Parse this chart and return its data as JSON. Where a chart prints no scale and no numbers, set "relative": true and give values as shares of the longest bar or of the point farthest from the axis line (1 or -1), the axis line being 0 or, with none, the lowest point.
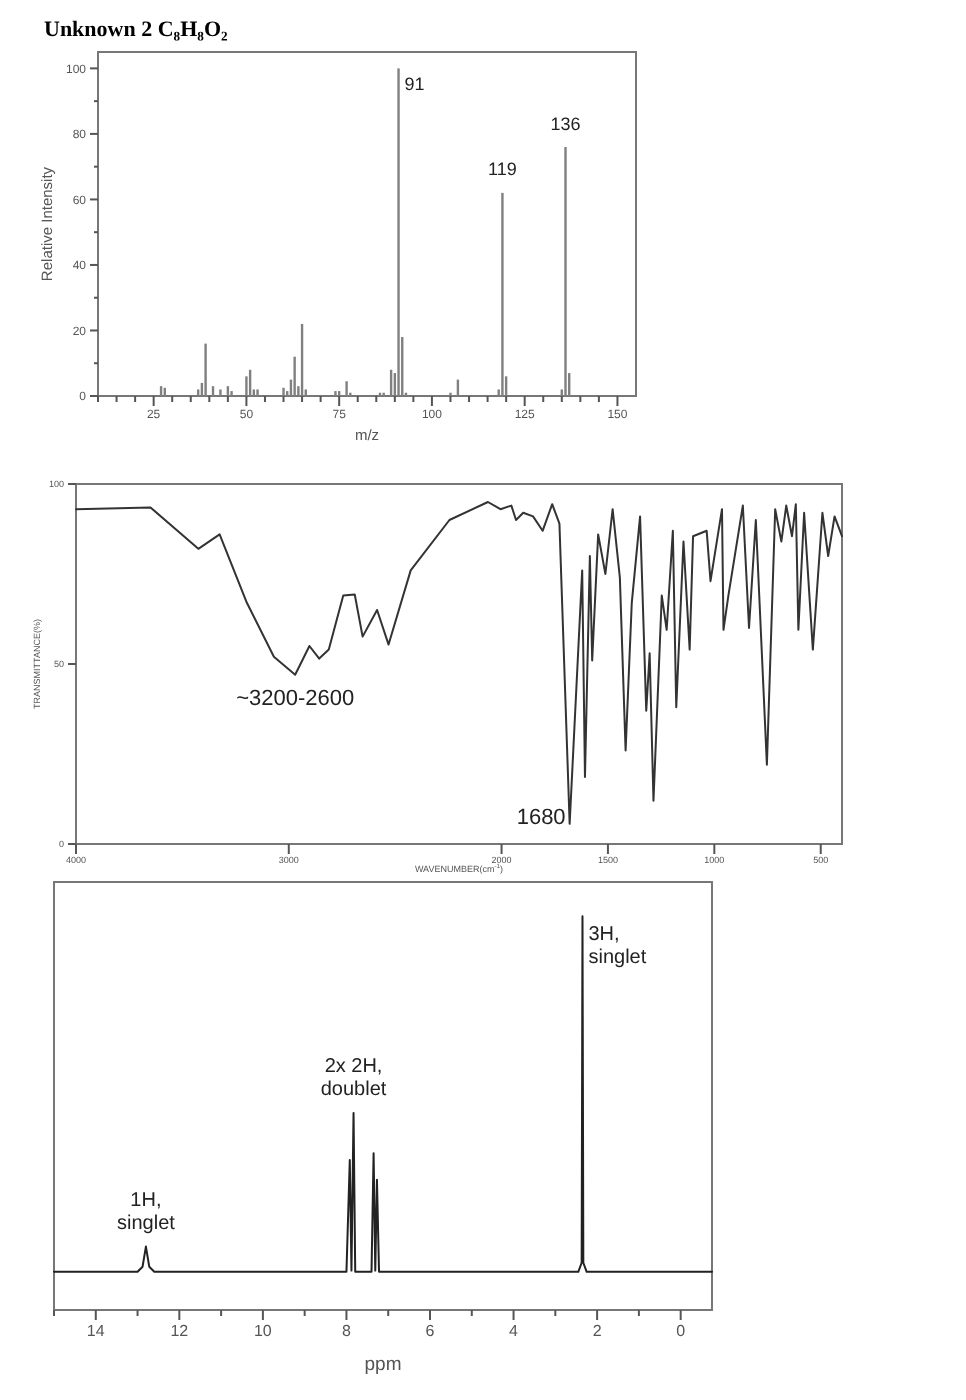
{
  "chart_data": [
    {
      "type": "bar",
      "title": "Unknown 2 C₈H₈O₂",
      "xlabel": "m/z",
      "ylabel": "Relative Intensity",
      "color": "#808080",
      "x": [
        27,
        28,
        37,
        38,
        39,
        41,
        43,
        45,
        46,
        50,
        51,
        52,
        53,
        60,
        61,
        62,
        63,
        64,
        65,
        66,
        74,
        75,
        77,
        78,
        86,
        87,
        89,
        90,
        91,
        92,
        93,
        105,
        107,
        118,
        119,
        120,
        135,
        136,
        137
      ],
      "values": [
        3,
        2.5,
        2,
        4,
        16,
        3,
        2,
        3,
        1.5,
        6,
        8,
        2,
        2,
        2.5,
        1.5,
        5,
        12,
        3,
        22,
        2,
        1.5,
        1.5,
        4.5,
        1,
        1,
        1,
        8,
        7,
        100,
        18,
        1,
        1,
        5,
        2,
        62,
        6,
        2,
        76,
        7
      ],
      "xlim": [
        10,
        155
      ],
      "ylim": [
        0,
        105
      ],
      "xticks": [
        {
          "value": 10,
          "label": null
        },
        {
          "value": 15,
          "label": null
        },
        {
          "value": 20,
          "label": null
        },
        25,
        {
          "value": 30,
          "label": null
        },
        {
          "value": 35,
          "label": null
        },
        {
          "value": 40,
          "label": null
        },
        {
          "value": 45,
          "label": null
        },
        50,
        {
          "value": 55,
          "label": null
        },
        {
          "value": 60,
          "label": null
        },
        {
          "value": 65,
          "label": null
        },
        {
          "value": 70,
          "label": null
        },
        75,
        {
          "value": 80,
          "label": null
        },
        {
          "value": 85,
          "label": null
        },
        {
          "value": 90,
          "label": null
        },
        {
          "value": 95,
          "label": null
        },
        100,
        {
          "value": 105,
          "label": null
        },
        {
          "value": 110,
          "label": null
        },
        {
          "value": 115,
          "label": null
        },
        {
          "value": 120,
          "label": null
        },
        125,
        {
          "value": 130,
          "label": null
        },
        {
          "value": 135,
          "label": null
        },
        {
          "value": 140,
          "label": null
        },
        {
          "value": 145,
          "label": null
        },
        150
      ],
      "yticks": [
        0,
        {
          "value": 10,
          "label": null
        },
        20,
        {
          "value": 30,
          "label": null
        },
        40,
        {
          "value": 50,
          "label": null
        },
        60,
        {
          "value": 70,
          "label": null
        },
        80,
        {
          "value": 90,
          "label": null
        },
        100
      ],
      "annotations": [
        {
          "text": "91",
          "x": 91,
          "y": 100
        },
        {
          "text": "119",
          "x": 119,
          "y": 62
        },
        {
          "text": "136",
          "x": 136,
          "y": 76
        }
      ]
    },
    {
      "type": "line",
      "xlabel": "WAVENUMBER(cm$^{-1}$)",
      "ylabel": "TRANSMITTANCE(%)",
      "color": "#333333",
      "x": [
        4000,
        3650,
        3425,
        3325,
        3197,
        3070,
        2970,
        2903,
        2857,
        2812,
        2744,
        2690,
        2653,
        2585,
        2531,
        2427,
        2245,
        2064,
        2005,
        1954,
        1932,
        1898,
        1852,
        1807,
        1762,
        1728,
        1680,
        1621,
        1608,
        1585,
        1574,
        1546,
        1512,
        1478,
        1444,
        1417,
        1388,
        1349,
        1320,
        1304,
        1286,
        1247,
        1224,
        1195,
        1179,
        1145,
        1116,
        1100,
        1036,
        1018,
        964,
        957,
        934,
        866,
        837,
        805,
        753,
        714,
        685,
        662,
        635,
        617,
        605,
        578,
        537,
        492,
        465,
        435,
        400
      ],
      "values": [
        93,
        93.5,
        82,
        86,
        67,
        52,
        47,
        55,
        51.5,
        54,
        69,
        69.3,
        57.6,
        65,
        55.4,
        76,
        90,
        95,
        93,
        94,
        90,
        92,
        91,
        87,
        94.4,
        89,
        5.6,
        76,
        18.6,
        80,
        51,
        86,
        75,
        93,
        74,
        26,
        67,
        91,
        37,
        53,
        12,
        69,
        59.5,
        87,
        38,
        84,
        54,
        85.5,
        87,
        73,
        93,
        59.5,
        69,
        94,
        60,
        90,
        22,
        93,
        84,
        94,
        85.5,
        94.4,
        59.5,
        92,
        54,
        92,
        80,
        91,
        85.5
      ],
      "xlim": [
        4000,
        400
      ],
      "ylim": [
        0,
        100
      ],
      "xticks": [
        4000,
        3000,
        2000,
        1500,
        1000,
        500
      ],
      "yticks": [
        0,
        50,
        100
      ],
      "annotations": [
        {
          "text": "~3200-2600",
          "x": 2970,
          "y": 47
        },
        {
          "text": "1680",
          "x": 1680,
          "y": 5.6
        }
      ]
    },
    {
      "type": "line",
      "xlabel": "ppm",
      "relative": true,
      "color": "#222222",
      "x": [
        15,
        13.0,
        12.88,
        12.8,
        12.72,
        12.6,
        8.0,
        7.92,
        7.88,
        7.83,
        7.79,
        7.4,
        7.35,
        7.31,
        7.27,
        7.22,
        2.45,
        2.37,
        2.35,
        2.33,
        2.25,
        -0.75
      ],
      "values": [
        0.097,
        0.097,
        0.11,
        0.161,
        0.11,
        0.097,
        0.097,
        0.381,
        0.1,
        0.5,
        0.097,
        0.097,
        0.398,
        0.1,
        0.331,
        0.097,
        0.097,
        0.12,
        1,
        0.12,
        0.097,
        0.097
      ],
      "xlim": [
        15,
        -0.75
      ],
      "xticks": [
        {
          "value": 15,
          "label": null
        },
        14,
        {
          "value": 13,
          "label": null
        },
        12,
        {
          "value": 11,
          "label": null
        },
        10,
        {
          "value": 9,
          "label": null
        },
        8,
        {
          "value": 7,
          "label": null
        },
        6,
        {
          "value": 5,
          "label": null
        },
        4,
        {
          "value": 3,
          "label": null
        },
        2,
        {
          "value": 1,
          "label": null
        },
        0
      ],
      "annotations": [
        {
          "text": "1H,\nsinglet",
          "x": 12.8,
          "y": 0.161
        },
        {
          "text": "2x 2H,\ndoublet",
          "x": 7.83,
          "y": 0.5
        },
        {
          "text": "3H,\nsinglet",
          "x": 2.35,
          "y": 1
        }
      ]
    }
  ]
}
